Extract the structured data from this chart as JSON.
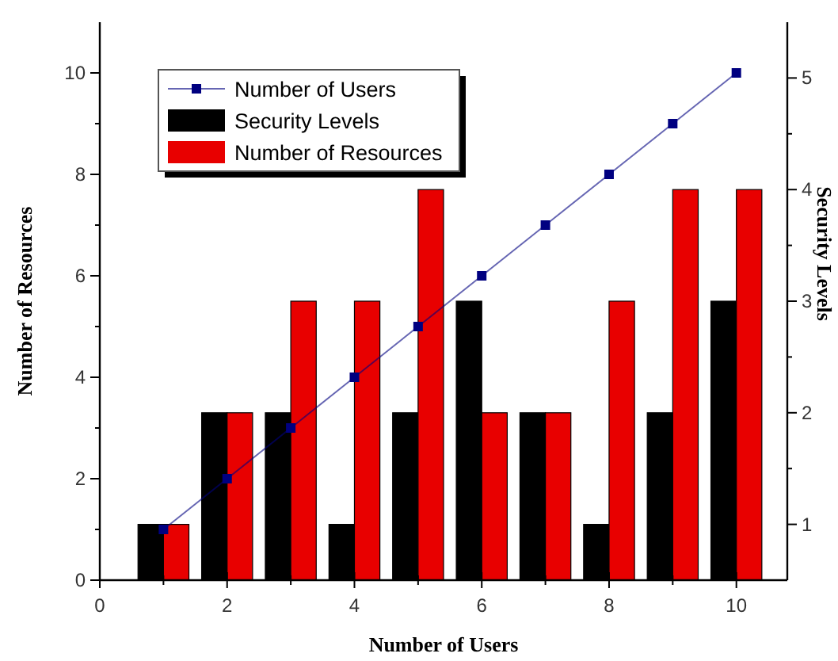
{
  "chart_data": {
    "type": "bar",
    "xlabel": "Number of Users",
    "ylabel": "Number of Resources",
    "y2label": "Security Levels",
    "xlim": [
      0,
      10.8
    ],
    "xticks": [
      0,
      {
        "value": 1,
        "label": null
      },
      2,
      {
        "value": 3,
        "label": null
      },
      4,
      {
        "value": 5,
        "label": null
      },
      6,
      {
        "value": 7,
        "label": null
      },
      8,
      {
        "value": 9,
        "label": null
      },
      10
    ],
    "ylim": [
      0,
      11
    ],
    "yticks": [
      0,
      {
        "value": 1,
        "label": null
      },
      2,
      {
        "value": 3,
        "label": null
      },
      4,
      {
        "value": 5,
        "label": null
      },
      6,
      {
        "value": 7,
        "label": null
      },
      8,
      {
        "value": 9,
        "label": null
      },
      10
    ],
    "y2lim": [
      0.5,
      5.5
    ],
    "y2ticks": [
      1,
      {
        "value": 1.5,
        "label": null
      },
      2,
      {
        "value": 2.5,
        "label": null
      },
      3,
      {
        "value": 3.5,
        "label": null
      },
      4,
      {
        "value": 4.5,
        "label": null
      },
      5
    ],
    "legend": "top left",
    "grid": false,
    "marker": "square",
    "line_style": "solid",
    "series": [
      {
        "name": "Number of Users",
        "type": "line",
        "color": "#000080",
        "x": [
          1,
          2,
          3,
          4,
          5,
          6,
          7,
          8,
          9,
          10
        ],
        "values": [
          1,
          2,
          3,
          4,
          5,
          6,
          7,
          8,
          9,
          10
        ]
      },
      {
        "name": "Security Levels",
        "axis": "y2",
        "color": "#000000",
        "x": [
          1,
          2,
          3,
          4,
          5,
          6,
          7,
          8,
          9,
          10
        ],
        "values": [
          1,
          2,
          2,
          1,
          2,
          3,
          2,
          1,
          2,
          3
        ]
      },
      {
        "name": "Number of Resources",
        "axis": "y2",
        "color": "#e80000",
        "x": [
          1,
          2,
          3,
          4,
          5,
          6,
          7,
          8,
          9,
          10
        ],
        "values": [
          1,
          2,
          3,
          3,
          4,
          2,
          2,
          3,
          4,
          4
        ]
      }
    ]
  }
}
